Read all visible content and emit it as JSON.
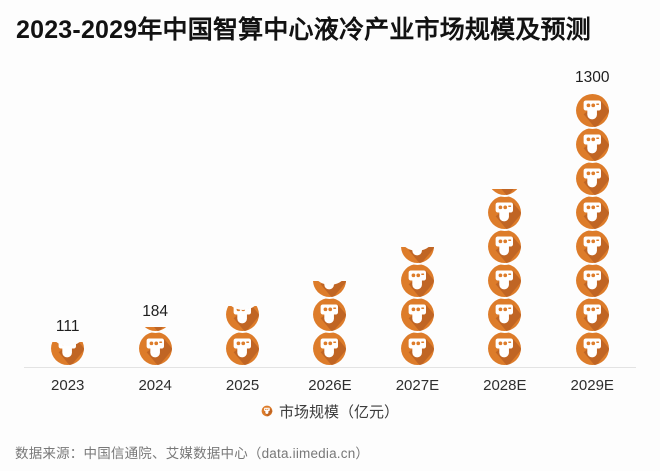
{
  "title": "2023-2029年中国智算中心液冷产业市场规模及预测",
  "legend": {
    "label": "市场规模（亿元）"
  },
  "source": "数据来源：中国信通院、艾媒数据中心（data.iimedia.cn）",
  "chart_data": {
    "type": "bar",
    "style": "pictogram-stacked-icons",
    "title": "2023-2029年中国智算中心液冷产业市场规模及预测",
    "series_name": "市场规模",
    "unit": "亿元",
    "categories": [
      "2023",
      "2024",
      "2025",
      "2026E",
      "2027E",
      "2028E",
      "2029E"
    ],
    "values": [
      111,
      184,
      280,
      400,
      565,
      840,
      1300
    ],
    "data_labels": [
      "111",
      "184",
      "",
      "",
      "",
      "",
      "1300"
    ],
    "icon_unit_value": 162.5,
    "ylim": [
      0,
      1400
    ],
    "grid": false,
    "y_axis_shown": false,
    "legend_position": "bottom",
    "colors": {
      "icon_main": "#DD7C2A",
      "icon_shadow": "#C06524",
      "icon_face": "#FFFFFF",
      "axis_line": "#E3E3E3",
      "label_text": "#1E1E1E",
      "background": "#FDFDFD"
    }
  }
}
